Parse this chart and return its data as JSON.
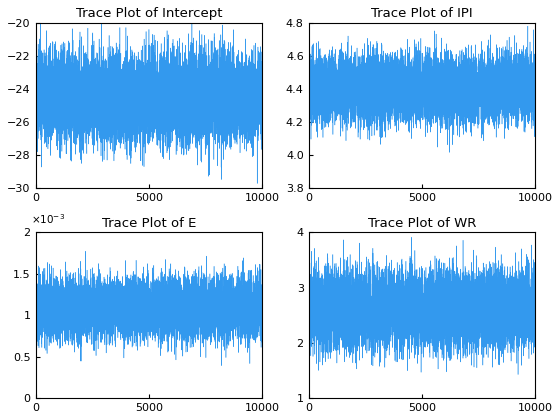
{
  "titles": [
    "Trace Plot of Intercept",
    "Trace Plot of IPI",
    "Trace Plot of E",
    "Trace Plot of WR"
  ],
  "n_samples": 10000,
  "intercept": {
    "mean": -24.5,
    "std": 1.3,
    "ylim": [
      -30,
      -20
    ],
    "yticks": [
      -30,
      -28,
      -26,
      -24,
      -22,
      -20
    ]
  },
  "ipi": {
    "mean": 4.4,
    "std": 0.1,
    "ylim": [
      3.8,
      4.8
    ],
    "yticks": [
      3.8,
      4.0,
      4.2,
      4.4,
      4.6,
      4.8
    ]
  },
  "e": {
    "mean": 0.00108,
    "std": 0.00018,
    "ylim": [
      0,
      0.002
    ],
    "yticks": [
      0,
      0.0005,
      0.001,
      0.0015,
      0.002
    ],
    "scale": 0.001
  },
  "wr": {
    "mean": 2.6,
    "std": 0.35,
    "ylim": [
      1,
      4
    ],
    "yticks": [
      1,
      2,
      3,
      4
    ]
  },
  "line_color": "#3399EE",
  "xlim": [
    0,
    10000
  ],
  "xticks": [
    0,
    5000,
    10000
  ],
  "seed": 42,
  "figsize": [
    5.6,
    4.2
  ],
  "dpi": 100,
  "phi": 0.05
}
